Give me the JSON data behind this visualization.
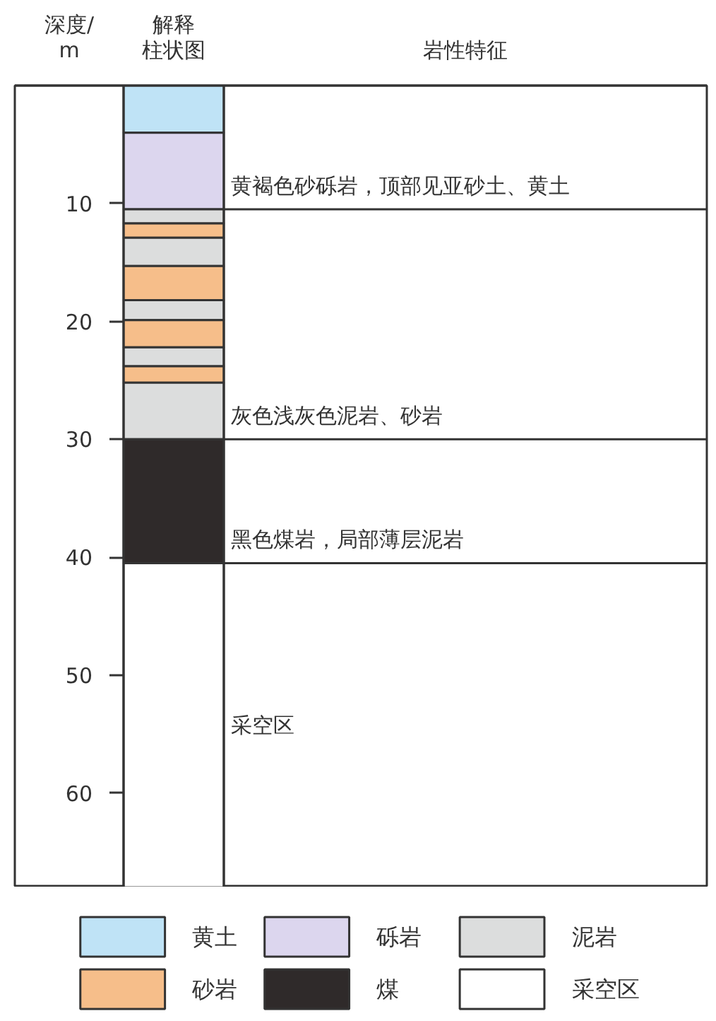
{
  "chart_data": {
    "type": "bar",
    "ylabel": "深度/\nm",
    "categories": [
      "解释柱状图"
    ],
    "ylim": [
      68,
      0
    ],
    "yticks": [
      10,
      20,
      30,
      40,
      50,
      60
    ],
    "legend": "bottom",
    "annotations": [
      "岩性特征",
      "采空区"
    ],
    "series": [
      {
        "name": "黄土",
        "color": "#bfe3f6",
        "values": [
          4
        ],
        "base": [
          0
        ]
      },
      {
        "name": "砾岩",
        "color": "#dcd6ee",
        "values": [
          6.5
        ],
        "base": [
          4
        ]
      },
      {
        "name": "泥岩",
        "color": "#dcdddd",
        "values": [
          1.2
        ],
        "base": [
          10.5
        ]
      },
      {
        "name": "砂岩",
        "color": "#f6be8a",
        "values": [
          1.2
        ],
        "base": [
          11.7
        ]
      },
      {
        "color": "#dcdddd",
        "values": [
          2.4
        ],
        "base": [
          12.9
        ]
      },
      {
        "color": "#f6be8a",
        "values": [
          2.9
        ],
        "base": [
          15.3
        ]
      },
      {
        "color": "#dcdddd",
        "values": [
          1.7
        ],
        "base": [
          18.2
        ]
      },
      {
        "color": "#f6be8a",
        "values": [
          2.3
        ],
        "base": [
          19.9
        ]
      },
      {
        "color": "#dcdddd",
        "values": [
          1.6
        ],
        "base": [
          22.2
        ]
      },
      {
        "color": "#f6be8a",
        "values": [
          1.4
        ],
        "base": [
          23.8
        ]
      },
      {
        "color": "#dcdddd",
        "values": [
          4.8
        ],
        "base": [
          25.2
        ]
      },
      {
        "name": "煤",
        "color": "#2f2a2a",
        "values": [
          10.5
        ],
        "base": [
          30
        ]
      },
      {
        "name": "采空区",
        "color": "#ffffff",
        "values": [
          27.5
        ],
        "base": [
          40.5
        ]
      }
    ],
    "ref_lines": [
      {
        "axis": "y",
        "value": 10.5,
        "label": "黄褐色砂砾岩，顶部见亚砂土、黄土"
      },
      {
        "axis": "y",
        "value": 30,
        "label": "灰色浅灰色泥岩、砂岩"
      },
      {
        "axis": "y",
        "value": 40.5,
        "label": "黑色煤岩，局部薄层泥岩"
      }
    ]
  }
}
